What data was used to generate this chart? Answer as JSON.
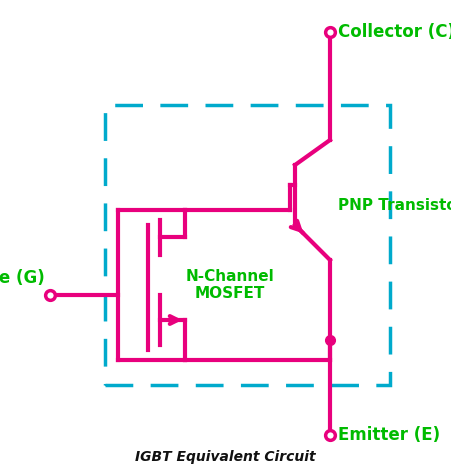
{
  "bg_color": "#ffffff",
  "pink": "#E8007D",
  "green": "#00BB00",
  "cyan_dash": "#00AACC",
  "title": "IGBT Equivalent Circuit",
  "label_collector": "Collector (C)",
  "label_gate": "Gate (G)",
  "label_emitter": "Emitter (E)",
  "label_pnp": "PNP Transistor",
  "label_mosfet": "N-Channel\nMOSFET",
  "fig_width": 4.51,
  "fig_height": 4.75,
  "dpi": 100
}
